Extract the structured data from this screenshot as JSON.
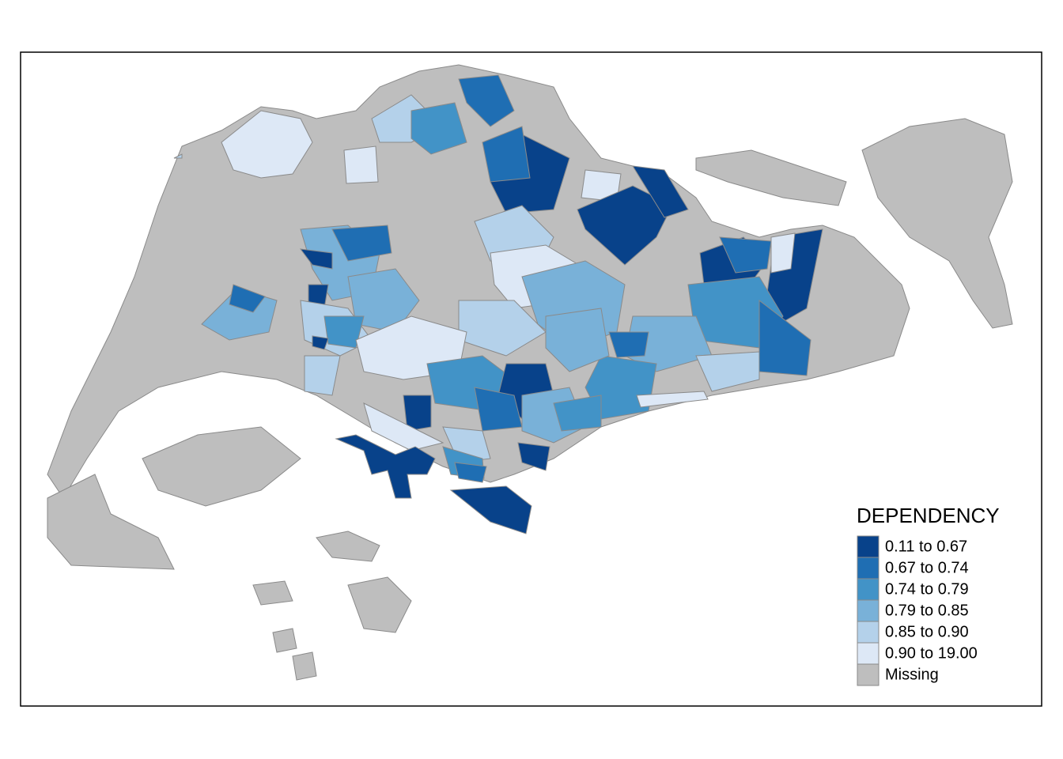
{
  "legend": {
    "title": "DEPENDENCY",
    "entries": [
      {
        "label": "0.11 to 0.67",
        "color": "#08428a"
      },
      {
        "label": "0.67 to 0.74",
        "color": "#1f6eb3"
      },
      {
        "label": "0.74 to 0.79",
        "color": "#4293c7"
      },
      {
        "label": "0.79 to 0.85",
        "color": "#79b1d8"
      },
      {
        "label": "0.85 to 0.90",
        "color": "#b4d1ea"
      },
      {
        "label": "0.90 to 19.00",
        "color": "#dde8f6"
      },
      {
        "label": "Missing",
        "color": "#bebebe"
      }
    ]
  }
}
